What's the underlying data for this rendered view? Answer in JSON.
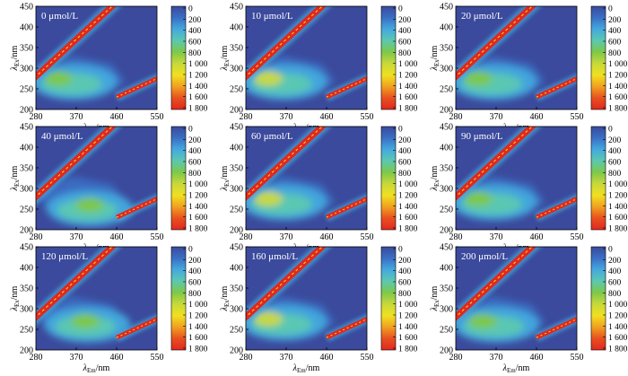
{
  "chart_data": [
    {
      "type": "heatmap",
      "label": "0 μmol/L",
      "xlabel_main": "λ",
      "xlabel_sub": "Em",
      "xlabel_unit": "/nm",
      "ylabel_main": "λ",
      "ylabel_sub": "Ex",
      "ylabel_unit": "/nm",
      "x_ticks": [
        "280",
        "370",
        "460",
        "550"
      ],
      "y_ticks": [
        "200",
        "250",
        "300",
        "350",
        "400",
        "450"
      ],
      "xlim": [
        280,
        550
      ],
      "ylim": [
        200,
        450
      ],
      "colorbar": {
        "ticks": [
          "0",
          "200",
          "400",
          "600",
          "800",
          "1 000",
          "1 200",
          "1 400",
          "1 600",
          "1 800"
        ],
        "range": [
          0,
          1800
        ],
        "colors": [
          "#3b4a9c",
          "#3a6fc4",
          "#45a9de",
          "#5cc8b0",
          "#7dc84a",
          "#c8d83a",
          "#f0e020",
          "#f0a020",
          "#e85020",
          "#e02820"
        ]
      },
      "peaks": [
        {
          "ex": 275,
          "em": 330,
          "intensity": 700
        }
      ],
      "scatter_intensity": 1800
    },
    {
      "type": "heatmap",
      "label": "10 μmol/L",
      "xlabel_main": "λ",
      "xlabel_sub": "Em",
      "xlabel_unit": "/nm",
      "ylabel_main": "λ",
      "ylabel_sub": "Ex",
      "ylabel_unit": "/nm",
      "x_ticks": [
        "280",
        "370",
        "460",
        "550"
      ],
      "y_ticks": [
        "200",
        "250",
        "300",
        "350",
        "400",
        "450"
      ],
      "xlim": [
        280,
        550
      ],
      "ylim": [
        200,
        450
      ],
      "colorbar": {
        "ticks": [
          "0",
          "200",
          "400",
          "600",
          "800",
          "1 000",
          "1 200",
          "1 400",
          "1 600",
          "1 800"
        ],
        "range": [
          0,
          1800
        ],
        "colors": [
          "#3b4a9c",
          "#3a6fc4",
          "#45a9de",
          "#5cc8b0",
          "#7dc84a",
          "#c8d83a",
          "#f0e020",
          "#f0a020",
          "#e85020",
          "#e02820"
        ]
      },
      "peaks": [
        {
          "ex": 275,
          "em": 330,
          "intensity": 900
        }
      ],
      "scatter_intensity": 1800
    },
    {
      "type": "heatmap",
      "label": "20 μmol/L",
      "xlabel_main": "λ",
      "xlabel_sub": "Em",
      "xlabel_unit": "/nm",
      "ylabel_main": "λ",
      "ylabel_sub": "Ex",
      "ylabel_unit": "/nm",
      "x_ticks": [
        "280",
        "370",
        "460",
        "550"
      ],
      "y_ticks": [
        "200",
        "250",
        "300",
        "350",
        "400",
        "450"
      ],
      "xlim": [
        280,
        550
      ],
      "ylim": [
        200,
        450
      ],
      "colorbar": {
        "ticks": [
          "0",
          "200",
          "400",
          "600",
          "800",
          "1 000",
          "1 200",
          "1 400",
          "1 600",
          "1 800"
        ],
        "range": [
          0,
          1800
        ],
        "colors": [
          "#3b4a9c",
          "#3a6fc4",
          "#45a9de",
          "#5cc8b0",
          "#7dc84a",
          "#c8d83a",
          "#f0e020",
          "#f0a020",
          "#e85020",
          "#e02820"
        ]
      },
      "peaks": [
        {
          "ex": 275,
          "em": 330,
          "intensity": 850
        }
      ],
      "scatter_intensity": 1800
    },
    {
      "type": "heatmap",
      "label": "40 μmol/L",
      "xlabel_main": "λ",
      "xlabel_sub": "Em",
      "xlabel_unit": "/nm",
      "ylabel_main": "λ",
      "ylabel_sub": "Ex",
      "ylabel_unit": "/nm",
      "x_ticks": [
        "280",
        "370",
        "460",
        "550"
      ],
      "y_ticks": [
        "200",
        "250",
        "300",
        "350",
        "400",
        "450"
      ],
      "xlim": [
        280,
        550
      ],
      "ylim": [
        200,
        450
      ],
      "colorbar": {
        "ticks": [
          "0",
          "200",
          "400",
          "600",
          "800",
          "1 000",
          "1 200",
          "1 400",
          "1 600",
          "1 800"
        ],
        "range": [
          0,
          1800
        ],
        "colors": [
          "#3b4a9c",
          "#3a6fc4",
          "#45a9de",
          "#5cc8b0",
          "#7dc84a",
          "#c8d83a",
          "#f0e020",
          "#f0a020",
          "#e85020",
          "#e02820"
        ]
      },
      "peaks": [
        {
          "ex": 260,
          "em": 400,
          "intensity": 750
        }
      ],
      "scatter_intensity": 1800
    },
    {
      "type": "heatmap",
      "label": "60 μmol/L",
      "xlabel_main": "λ",
      "xlabel_sub": "Em",
      "xlabel_unit": "/nm",
      "ylabel_main": "λ",
      "ylabel_sub": "Ex",
      "ylabel_unit": "/nm",
      "x_ticks": [
        "280",
        "370",
        "460",
        "550"
      ],
      "y_ticks": [
        "200",
        "250",
        "300",
        "350",
        "400",
        "450"
      ],
      "xlim": [
        280,
        550
      ],
      "ylim": [
        200,
        450
      ],
      "colorbar": {
        "ticks": [
          "0",
          "200",
          "400",
          "600",
          "800",
          "1 000",
          "1 200",
          "1 400",
          "1 600",
          "1 800"
        ],
        "range": [
          0,
          1800
        ],
        "colors": [
          "#3b4a9c",
          "#3a6fc4",
          "#45a9de",
          "#5cc8b0",
          "#7dc84a",
          "#c8d83a",
          "#f0e020",
          "#f0a020",
          "#e85020",
          "#e02820"
        ]
      },
      "peaks": [
        {
          "ex": 275,
          "em": 330,
          "intensity": 900
        }
      ],
      "scatter_intensity": 1800
    },
    {
      "type": "heatmap",
      "label": "90 μmol/L",
      "xlabel_main": "λ",
      "xlabel_sub": "Em",
      "xlabel_unit": "/nm",
      "ylabel_main": "λ",
      "ylabel_sub": "Ex",
      "ylabel_unit": "/nm",
      "x_ticks": [
        "280",
        "370",
        "460",
        "550"
      ],
      "y_ticks": [
        "200",
        "250",
        "300",
        "350",
        "400",
        "450"
      ],
      "xlim": [
        280,
        550
      ],
      "ylim": [
        200,
        450
      ],
      "colorbar": {
        "ticks": [
          "0",
          "200",
          "400",
          "600",
          "800",
          "1 000",
          "1 200",
          "1 400",
          "1 600",
          "1 800"
        ],
        "range": [
          0,
          1800
        ],
        "colors": [
          "#3b4a9c",
          "#3a6fc4",
          "#45a9de",
          "#5cc8b0",
          "#7dc84a",
          "#c8d83a",
          "#f0e020",
          "#f0a020",
          "#e85020",
          "#e02820"
        ]
      },
      "peaks": [
        {
          "ex": 275,
          "em": 330,
          "intensity": 850
        }
      ],
      "scatter_intensity": 1800
    },
    {
      "type": "heatmap",
      "label": "120 μmol/L",
      "xlabel_main": "λ",
      "xlabel_sub": "Em",
      "xlabel_unit": "/nm",
      "ylabel_main": "λ",
      "ylabel_sub": "Ex",
      "ylabel_unit": "/nm",
      "x_ticks": [
        "280",
        "370",
        "460",
        "550"
      ],
      "y_ticks": [
        "200",
        "250",
        "300",
        "350",
        "400",
        "450"
      ],
      "xlim": [
        280,
        550
      ],
      "ylim": [
        200,
        450
      ],
      "colorbar": {
        "ticks": [
          "0",
          "200",
          "400",
          "600",
          "800",
          "1 000",
          "1 200",
          "1 400",
          "1 600",
          "1 800"
        ],
        "range": [
          0,
          1800
        ],
        "colors": [
          "#3b4a9c",
          "#3a6fc4",
          "#45a9de",
          "#5cc8b0",
          "#7dc84a",
          "#c8d83a",
          "#f0e020",
          "#f0a020",
          "#e85020",
          "#e02820"
        ]
      },
      "peaks": [
        {
          "ex": 270,
          "em": 390,
          "intensity": 750
        }
      ],
      "scatter_intensity": 1800
    },
    {
      "type": "heatmap",
      "label": "160 μmol/L",
      "xlabel_main": "λ",
      "xlabel_sub": "Em",
      "xlabel_unit": "/nm",
      "ylabel_main": "λ",
      "ylabel_sub": "Ex",
      "ylabel_unit": "/nm",
      "x_ticks": [
        "280",
        "370",
        "460",
        "550"
      ],
      "y_ticks": [
        "200",
        "250",
        "300",
        "350",
        "400",
        "450"
      ],
      "xlim": [
        280,
        550
      ],
      "ylim": [
        200,
        450
      ],
      "colorbar": {
        "ticks": [
          "0",
          "200",
          "400",
          "600",
          "800",
          "1 000",
          "1 200",
          "1 400",
          "1 600",
          "1 800"
        ],
        "range": [
          0,
          1800
        ],
        "colors": [
          "#3b4a9c",
          "#3a6fc4",
          "#45a9de",
          "#5cc8b0",
          "#7dc84a",
          "#c8d83a",
          "#f0e020",
          "#f0a020",
          "#e85020",
          "#e02820"
        ]
      },
      "peaks": [
        {
          "ex": 275,
          "em": 330,
          "intensity": 950
        }
      ],
      "scatter_intensity": 1800
    },
    {
      "type": "heatmap",
      "label": "200 μmol/L",
      "xlabel_main": "λ",
      "xlabel_sub": "Em",
      "xlabel_unit": "/nm",
      "ylabel_main": "λ",
      "ylabel_sub": "Ex",
      "ylabel_unit": "/nm",
      "x_ticks": [
        "280",
        "370",
        "460",
        "550"
      ],
      "y_ticks": [
        "200",
        "250",
        "300",
        "350",
        "400",
        "450"
      ],
      "xlim": [
        280,
        550
      ],
      "ylim": [
        200,
        450
      ],
      "colorbar": {
        "ticks": [
          "0",
          "200",
          "400",
          "600",
          "800",
          "1 000",
          "1 200",
          "1 400",
          "1 600",
          "1 800"
        ],
        "range": [
          0,
          1800
        ],
        "colors": [
          "#3b4a9c",
          "#3a6fc4",
          "#45a9de",
          "#5cc8b0",
          "#7dc84a",
          "#c8d83a",
          "#f0e020",
          "#f0a020",
          "#e85020",
          "#e02820"
        ]
      },
      "peaks": [
        {
          "ex": 270,
          "em": 340,
          "intensity": 700
        }
      ],
      "scatter_intensity": 1800
    }
  ]
}
